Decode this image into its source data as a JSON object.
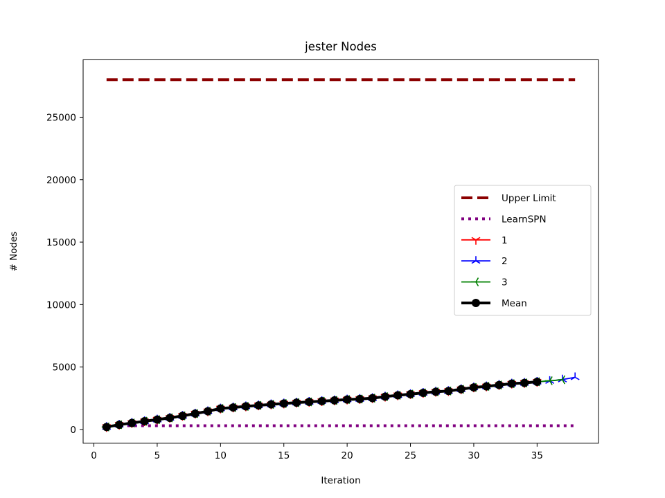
{
  "chart_data": {
    "type": "line",
    "title": "jester Nodes",
    "xlabel": "Iteration",
    "ylabel": "# Nodes",
    "xlim": [
      -0.85,
      39.85
    ],
    "ylim": [
      -1100,
      29600
    ],
    "xticks": [
      0,
      5,
      10,
      15,
      20,
      25,
      30,
      35
    ],
    "yticks": [
      0,
      5000,
      10000,
      15000,
      20000,
      25000
    ],
    "grid": false,
    "legend_position": "center-right",
    "series": [
      {
        "name": "Upper Limit",
        "style": "dashed",
        "color": "#8b0000",
        "x": [
          1,
          38
        ],
        "y": [
          28000,
          28000
        ]
      },
      {
        "name": "LearnSPN",
        "style": "dotted",
        "color": "#800080",
        "x": [
          1,
          38
        ],
        "y": [
          300,
          300
        ]
      },
      {
        "name": "1",
        "style": "solid",
        "marker": "tri_down",
        "color": "#ff0000",
        "x": [
          1,
          2,
          3,
          4,
          5,
          6,
          7,
          8,
          9,
          10,
          11,
          12,
          13,
          14,
          15,
          16,
          17,
          18,
          19,
          20,
          21,
          22,
          23,
          24,
          25,
          26,
          27,
          28,
          29,
          30,
          31,
          32,
          33,
          34,
          35
        ],
        "y": [
          200,
          380,
          520,
          660,
          790,
          930,
          1090,
          1270,
          1460,
          1680,
          1760,
          1850,
          1930,
          2010,
          2080,
          2150,
          2210,
          2270,
          2330,
          2400,
          2440,
          2510,
          2630,
          2740,
          2830,
          2930,
          3020,
          3080,
          3220,
          3370,
          3450,
          3560,
          3670,
          3730,
          3820
        ]
      },
      {
        "name": "2",
        "style": "solid",
        "marker": "tri_up",
        "color": "#0000ff",
        "x": [
          1,
          2,
          3,
          4,
          5,
          6,
          7,
          8,
          9,
          10,
          11,
          12,
          13,
          14,
          15,
          16,
          17,
          18,
          19,
          20,
          21,
          22,
          23,
          24,
          25,
          26,
          27,
          28,
          29,
          30,
          31,
          32,
          33,
          34,
          35,
          36,
          37,
          38
        ],
        "y": [
          200,
          380,
          520,
          660,
          790,
          930,
          1090,
          1270,
          1460,
          1680,
          1760,
          1850,
          1930,
          2010,
          2080,
          2150,
          2210,
          2270,
          2330,
          2400,
          2440,
          2510,
          2630,
          2740,
          2830,
          2930,
          3020,
          3080,
          3220,
          3370,
          3450,
          3560,
          3670,
          3730,
          3820,
          3880,
          4000,
          4180
        ]
      },
      {
        "name": "3",
        "style": "solid",
        "marker": "tri_left",
        "color": "#008000",
        "x": [
          1,
          2,
          3,
          4,
          5,
          6,
          7,
          8,
          9,
          10,
          11,
          12,
          13,
          14,
          15,
          16,
          17,
          18,
          19,
          20,
          21,
          22,
          23,
          24,
          25,
          26,
          27,
          28,
          29,
          30,
          31,
          32,
          33,
          34,
          35,
          36,
          37
        ],
        "y": [
          200,
          380,
          520,
          660,
          790,
          930,
          1090,
          1270,
          1460,
          1680,
          1760,
          1850,
          1930,
          2010,
          2080,
          2150,
          2210,
          2270,
          2330,
          2400,
          2440,
          2510,
          2630,
          2740,
          2830,
          2930,
          3020,
          3080,
          3220,
          3370,
          3450,
          3560,
          3670,
          3730,
          3820,
          3900,
          3980
        ]
      },
      {
        "name": "Mean",
        "style": "solid-thick",
        "marker": "circle",
        "color": "#000000",
        "x": [
          1,
          2,
          3,
          4,
          5,
          6,
          7,
          8,
          9,
          10,
          11,
          12,
          13,
          14,
          15,
          16,
          17,
          18,
          19,
          20,
          21,
          22,
          23,
          24,
          25,
          26,
          27,
          28,
          29,
          30,
          31,
          32,
          33,
          34,
          35
        ],
        "y": [
          200,
          380,
          520,
          660,
          790,
          930,
          1090,
          1270,
          1460,
          1680,
          1760,
          1850,
          1930,
          2010,
          2080,
          2150,
          2210,
          2270,
          2330,
          2400,
          2440,
          2510,
          2630,
          2740,
          2830,
          2930,
          3020,
          3080,
          3220,
          3370,
          3450,
          3560,
          3670,
          3730,
          3820
        ]
      }
    ]
  }
}
